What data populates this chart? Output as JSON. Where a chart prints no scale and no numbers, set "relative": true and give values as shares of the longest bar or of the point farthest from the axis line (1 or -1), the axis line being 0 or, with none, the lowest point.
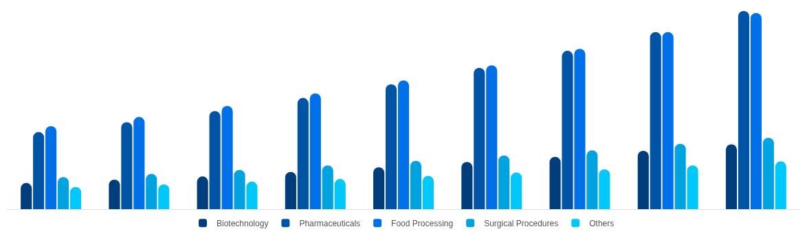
{
  "chart_data": {
    "type": "bar",
    "relative": true,
    "legend": "bottom",
    "categories": [
      null,
      null,
      null,
      null,
      null,
      null,
      null,
      null,
      null
    ],
    "series": [
      {
        "name": "Biotechnology",
        "color": "#003d7c",
        "values": [
          0.132,
          0.149,
          0.165,
          0.188,
          0.211,
          0.238,
          0.264,
          0.294,
          0.327
        ]
      },
      {
        "name": "Pharmaceuticals",
        "color": "#0054a6",
        "values": [
          0.389,
          0.439,
          0.495,
          0.561,
          0.63,
          0.713,
          0.799,
          0.894,
          1
        ]
      },
      {
        "name": "Food Processing",
        "color": "#0070e8",
        "values": [
          0.419,
          0.465,
          0.521,
          0.584,
          0.65,
          0.726,
          0.809,
          0.894,
          0.99
        ]
      },
      {
        "name": "Surgical Procedures",
        "color": "#00a2e0",
        "values": [
          0.162,
          0.178,
          0.198,
          0.221,
          0.244,
          0.271,
          0.297,
          0.33,
          0.36
        ]
      },
      {
        "name": "Others",
        "color": "#00c8fa",
        "values": [
          0.112,
          0.125,
          0.139,
          0.152,
          0.168,
          0.185,
          0.201,
          0.221,
          0.241
        ]
      }
    ]
  }
}
